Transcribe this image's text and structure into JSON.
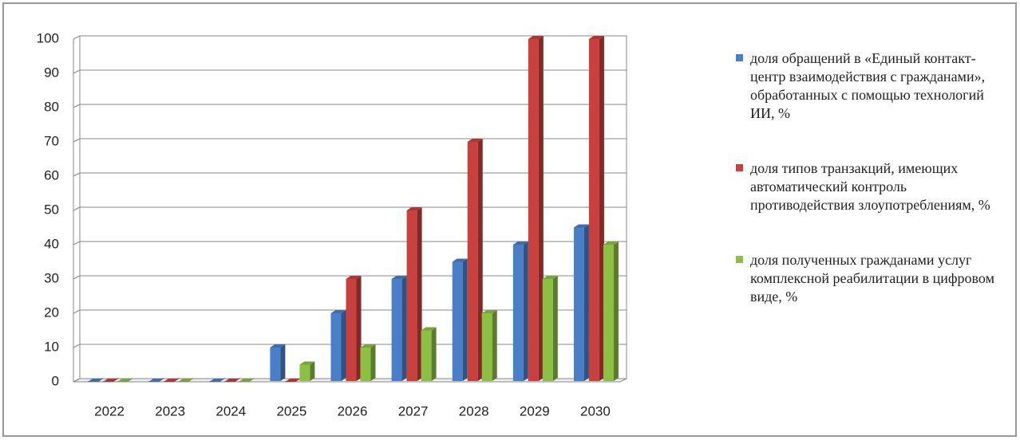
{
  "chart_data": {
    "type": "bar",
    "categories": [
      "2022",
      "2023",
      "2024",
      "2025",
      "2026",
      "2027",
      "2028",
      "2029",
      "2030"
    ],
    "series": [
      {
        "name": "доля обращений в «Единый контакт-центр взаимодействия с гражданами», обработанных с помощью технологий ИИ, %",
        "color": "#4a7fc8",
        "values": [
          0,
          0,
          0,
          10,
          20,
          30,
          35,
          40,
          45
        ]
      },
      {
        "name": "доля типов транзакций, имеющих автоматический контроль противодействия злоупотреблениям, %",
        "color": "#c9413e",
        "values": [
          0,
          0,
          0,
          0,
          30,
          50,
          70,
          100,
          100
        ]
      },
      {
        "name": "доля полученных гражданами услуг комплексной реабилитации в цифровом виде, %",
        "color": "#8dbf45",
        "values": [
          0,
          0,
          0,
          5,
          10,
          15,
          20,
          30,
          40
        ]
      }
    ],
    "ylim": [
      0,
      100
    ],
    "yticks": [
      0,
      10,
      20,
      30,
      40,
      50,
      60,
      70,
      80,
      90,
      100
    ],
    "grid": true,
    "legend": "right"
  }
}
